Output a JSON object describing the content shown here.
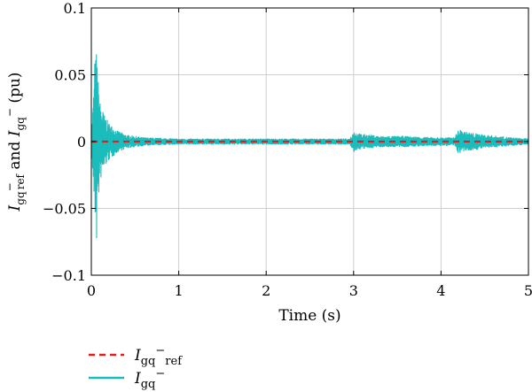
{
  "chart_data": {
    "type": "line",
    "xlabel": "Time (s)",
    "ylabel": {
      "parts": [
        {
          "text": "I",
          "style": "italic"
        },
        {
          "text": "gq",
          "style": "sub"
        },
        {
          "text": "−",
          "style": "sup"
        },
        {
          "text": "ref",
          "style": "sub"
        },
        {
          "text": " and ",
          "style": "normal"
        },
        {
          "text": "I",
          "style": "italic"
        },
        {
          "text": "gq",
          "style": "sub"
        },
        {
          "text": "−",
          "style": "sup"
        },
        {
          "text": " (pu)",
          "style": "normal"
        }
      ]
    },
    "xlim": [
      0,
      5
    ],
    "ylim": [
      -0.1,
      0.1
    ],
    "xticks": [
      0,
      1,
      2,
      3,
      4,
      5
    ],
    "xtick_labels": [
      "0",
      "1",
      "2",
      "3",
      "4",
      "5"
    ],
    "yticks": [
      -0.1,
      -0.05,
      0,
      0.05,
      0.1
    ],
    "ytick_labels": [
      "−0.1",
      "−0.05",
      "0",
      "0.05",
      "0.1"
    ],
    "grid": true,
    "legend": {
      "placement": "below",
      "entries": [
        {
          "series_index": 0,
          "italic": "I",
          "sub": "gq",
          "sup": "−",
          "sub2": "ref"
        },
        {
          "series_index": 1,
          "italic": "I",
          "sub": "gq",
          "sup": "−",
          "sub2": ""
        }
      ]
    },
    "series": [
      {
        "color": "#e02020",
        "dash": "dashed",
        "x": [
          0,
          5
        ],
        "y": [
          0,
          0
        ]
      },
      {
        "color": "#1bbcbc",
        "dash": "solid",
        "envelope": {
          "x": [
            0,
            0.02,
            0.04,
            0.06,
            0.08,
            0.1,
            0.15,
            0.2,
            0.3,
            0.4,
            0.5,
            0.6,
            0.8,
            1.0,
            1.5,
            2.0,
            2.5,
            2.95,
            3.0,
            3.05,
            3.3,
            3.6,
            3.9,
            4.15,
            4.2,
            4.3,
            4.5,
            4.8,
            5.0
          ],
          "amp": [
            0.005,
            0.03,
            0.058,
            0.07,
            0.045,
            0.03,
            0.02,
            0.014,
            0.008,
            0.005,
            0.004,
            0.003,
            0.0025,
            0.002,
            0.002,
            0.002,
            0.002,
            0.002,
            0.008,
            0.006,
            0.004,
            0.004,
            0.003,
            0.003,
            0.009,
            0.007,
            0.005,
            0.003,
            0.002
          ]
        },
        "peaks": [
          {
            "x": 0.04,
            "y": 0.058
          },
          {
            "x": 0.06,
            "y": -0.072
          }
        ]
      }
    ]
  }
}
